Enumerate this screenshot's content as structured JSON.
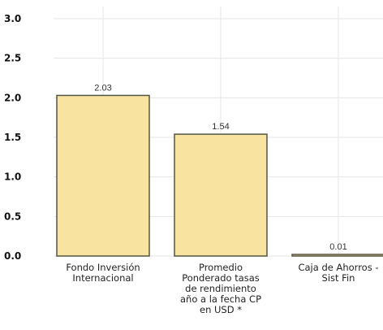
{
  "chart_data": {
    "type": "bar",
    "title": "",
    "xlabel": "",
    "ylabel": "",
    "ylim": [
      0,
      3
    ],
    "yticks": [
      "0.0",
      "0.5",
      "1.0",
      "1.5",
      "2.0",
      "2.5",
      "3.0"
    ],
    "grid": true,
    "legend": "none",
    "categories": [
      [
        "Fondo Inversión",
        "Internacional"
      ],
      [
        "Promedio",
        "Ponderado tasas",
        "de rendimiento",
        "año a la fecha CP",
        "en USD *"
      ],
      [
        "Caja de Ahorros -",
        "Sist Fin"
      ]
    ],
    "values": [
      2.03,
      1.54,
      0.01
    ],
    "value_labels": [
      "2.03",
      "1.54",
      "0.01"
    ],
    "colors": {
      "bar_fill": "#f9e3a0",
      "bar_stroke": "#555544",
      "grid": "#e6e6e6"
    }
  }
}
